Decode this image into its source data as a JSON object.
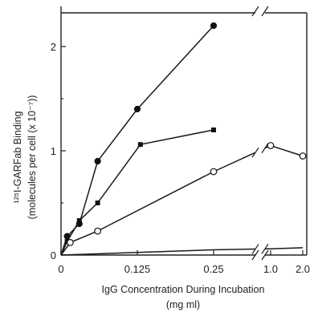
{
  "chart_data": {
    "type": "line",
    "xlabel_line1": "IgG Concentration During Incubation",
    "xlabel_line2": "(mg ml)",
    "ylabel_line1": "¹²⁵I-GARFab Binding",
    "ylabel_line2": "(molecules per cell (x 10⁻⁷))",
    "x_ticks": [
      "0",
      "0.125",
      "0.25",
      "1.0",
      "2.0"
    ],
    "y_ticks": [
      "0",
      "1",
      "2"
    ],
    "xlim_left_segment": [
      0,
      0.25
    ],
    "xlim_right_segment": [
      1.0,
      2.0
    ],
    "axis_break": "between 0.25 and 1.0",
    "ylim": [
      0,
      2.4
    ],
    "series": [
      {
        "marker": "filled-circle",
        "x": [
          0,
          0.01,
          0.03,
          0.06,
          0.125,
          0.25
        ],
        "y": [
          0,
          0.18,
          0.3,
          0.9,
          1.4,
          2.2
        ]
      },
      {
        "marker": "filled-square",
        "x": [
          0,
          0.01,
          0.03,
          0.06,
          0.13,
          0.25
        ],
        "y": [
          0,
          0.13,
          0.33,
          0.5,
          1.06,
          1.2
        ]
      },
      {
        "marker": "open-circle",
        "x": [
          0,
          0.015,
          0.06,
          0.25,
          1.0,
          2.0
        ],
        "y": [
          0,
          0.12,
          0.23,
          0.8,
          1.05,
          0.95
        ]
      },
      {
        "marker": "none",
        "x": [
          0,
          0.25,
          1.0,
          2.0
        ],
        "y": [
          0,
          0.05,
          0.06,
          0.07
        ]
      }
    ]
  }
}
